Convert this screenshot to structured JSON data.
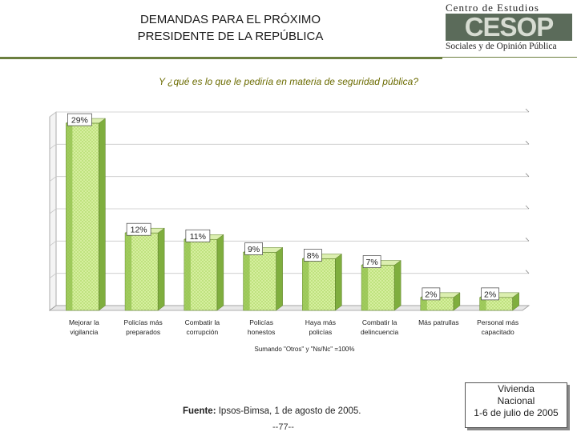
{
  "header": {
    "title_line1": "DEMANDAS PARA EL PRÓXIMO",
    "title_line2": "PRESIDENTE DE LA REPÚBLICA"
  },
  "logo": {
    "top": "Centro de Estudios",
    "mid": "CESOP",
    "bottom": "Sociales y de Opinión Pública"
  },
  "chart_data": {
    "type": "bar",
    "title": "Y ¿qué es lo que le pediría en materia de seguridad pública?",
    "categories": [
      [
        "Mejorar la",
        "vigilancia"
      ],
      [
        "Policías más",
        "preparados"
      ],
      [
        "Combatir la",
        "corrupción"
      ],
      [
        "Policías",
        "honestos"
      ],
      [
        "Haya más",
        "policías"
      ],
      [
        "Combatir la",
        "delincuencia"
      ],
      [
        "Más patrullas",
        ""
      ],
      [
        "Personal más",
        "capacitado"
      ]
    ],
    "values": [
      29,
      12,
      11,
      9,
      8,
      7,
      2,
      2
    ],
    "value_labels": [
      "29%",
      "12%",
      "11%",
      "9%",
      "8%",
      "7%",
      "2%",
      "2%"
    ],
    "unit": "%",
    "ylim": [
      0,
      30
    ],
    "grid": true,
    "colors": {
      "front": "#bfe27f",
      "side": "#7fae3e",
      "top": "#dcefb0"
    }
  },
  "footer": {
    "note": "Sumando \"Otros\" y \"Ns/Nc\" =100%",
    "source_label": "Fuente:",
    "source_text": "Ipsos-Bimsa, 1 de agosto de 2005.",
    "page": "--77--",
    "box_line1": "Vivienda",
    "box_line2": "Nacional",
    "box_line3": "1-6 de julio de 2005"
  }
}
